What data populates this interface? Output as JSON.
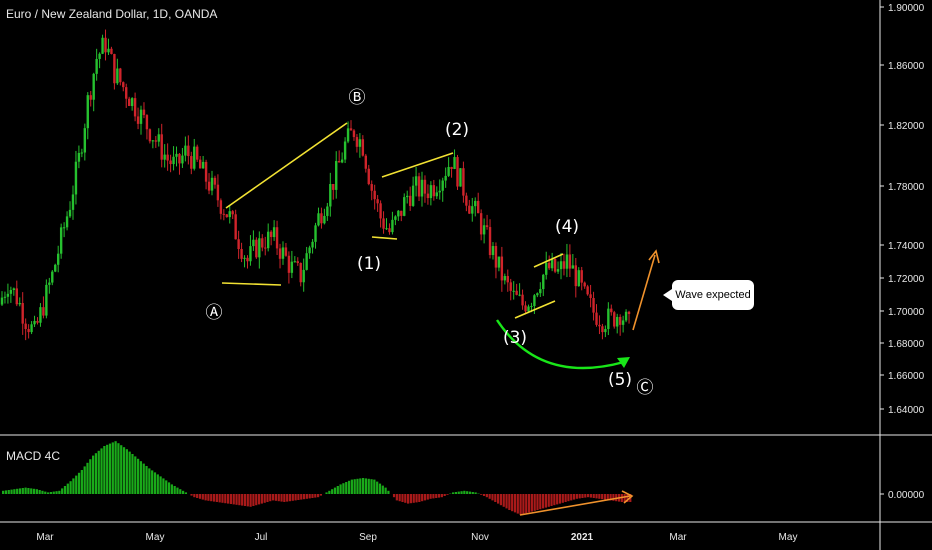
{
  "header": {
    "title": "Euro / New Zealand Dollar, 1D, OANDA"
  },
  "indicator": {
    "title": "MACD 4C"
  },
  "callout": {
    "text": "Wave expected"
  },
  "colors": {
    "up": "#26c12f",
    "down": "#d0242b",
    "yellow": "#f2e233",
    "green_arc": "#19e619",
    "orange": "#f0922c",
    "macd_green": "#1ec81e",
    "macd_red": "#c81e1e"
  },
  "chart_data": {
    "type": "candlestick",
    "title": "Euro / New Zealand Dollar, 1D, OANDA",
    "price_axis": {
      "ticks": [
        "1.90000",
        "1.86000",
        "1.82000",
        "1.78000",
        "1.74000",
        "1.72000",
        "1.70000",
        "1.68000",
        "1.66000",
        "1.64000"
      ],
      "range": [
        1.615,
        1.905
      ]
    },
    "macd_axis": {
      "ticks": [
        "0.00000"
      ]
    },
    "time_axis": {
      "ticks": [
        "Mar",
        "May",
        "Jul",
        "Sep",
        "Nov",
        "2021",
        "Mar",
        "May"
      ]
    },
    "approx_closes": [
      1.7,
      1.715,
      1.705,
      1.69,
      1.68,
      1.7,
      1.72,
      1.745,
      1.77,
      1.8,
      1.84,
      1.87,
      1.88,
      1.86,
      1.85,
      1.84,
      1.83,
      1.82,
      1.81,
      1.8,
      1.795,
      1.805,
      1.8,
      1.79,
      1.78,
      1.77,
      1.76,
      1.745,
      1.73,
      1.74,
      1.745,
      1.745,
      1.735,
      1.725,
      1.72,
      1.74,
      1.76,
      1.775,
      1.79,
      1.81,
      1.82,
      1.81,
      1.78,
      1.76,
      1.75,
      1.76,
      1.775,
      1.78,
      1.778,
      1.782,
      1.79,
      1.8,
      1.785,
      1.77,
      1.76,
      1.745,
      1.73,
      1.715,
      1.705,
      1.7,
      1.705,
      1.718,
      1.725,
      1.722,
      1.73,
      1.72,
      1.705,
      1.695,
      1.69,
      1.69,
      1.695,
      1.685
    ],
    "macd_histogram": [
      0.2,
      0.3,
      0.4,
      0.3,
      0.1,
      0.2,
      0.8,
      1.5,
      2.4,
      3.0,
      3.3,
      2.8,
      2.2,
      1.6,
      1.1,
      0.6,
      0.2,
      -0.2,
      -0.4,
      -0.5,
      -0.6,
      -0.7,
      -0.8,
      -0.6,
      -0.4,
      -0.5,
      -0.4,
      -0.3,
      -0.2,
      0.2,
      0.6,
      0.9,
      1.0,
      0.9,
      0.4,
      -0.4,
      -0.6,
      -0.5,
      -0.3,
      -0.2,
      0.1,
      0.2,
      0.1,
      -0.2,
      -0.6,
      -1.0,
      -1.3,
      -1.1,
      -0.9,
      -0.7,
      -0.5,
      -0.3,
      -0.2,
      -0.3,
      -0.4,
      -0.5
    ],
    "annotations": {
      "wave_labels": [
        "Ⓐ",
        "Ⓑ",
        "(1)",
        "(2)",
        "(3)",
        "(4)",
        "(5)",
        "Ⓒ"
      ]
    }
  }
}
